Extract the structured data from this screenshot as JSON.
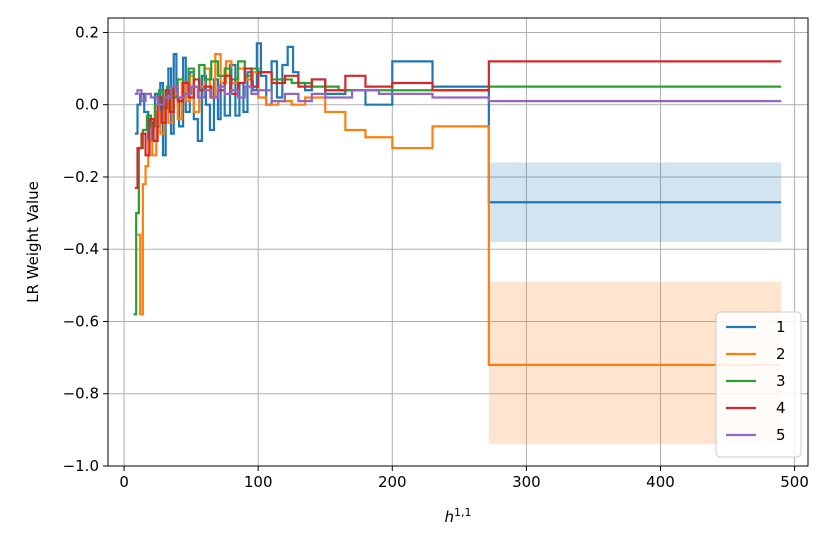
{
  "chart_data": {
    "type": "line",
    "step": true,
    "xlabel": "h",
    "xlabel_superscript": "1,1",
    "ylabel": "LR Weight Value",
    "xlim": [
      -12,
      510
    ],
    "ylim": [
      -1.0,
      0.24
    ],
    "xticks": [
      0,
      100,
      200,
      300,
      400,
      500
    ],
    "yticks": [
      0.2,
      0.0,
      -0.2,
      -0.4,
      -0.6,
      -0.8,
      -1.0
    ],
    "ytick_labels": [
      "0.2",
      "0.0",
      "−0.2",
      "−0.4",
      "−0.6",
      "−0.8",
      "−1.0"
    ],
    "grid": true,
    "legend_position": "lower-right",
    "series": [
      {
        "name": "1",
        "color": "#1f77b4",
        "points": [
          [
            8,
            -0.08
          ],
          [
            10,
            0.0
          ],
          [
            12,
            0.03
          ],
          [
            15,
            -0.02
          ],
          [
            18,
            -0.1
          ],
          [
            21,
            -0.05
          ],
          [
            23,
            0.03
          ],
          [
            25,
            -0.06
          ],
          [
            27,
            0.06
          ],
          [
            29,
            -0.14
          ],
          [
            31,
            0.03
          ],
          [
            33,
            0.1
          ],
          [
            35,
            -0.08
          ],
          [
            37,
            0.14
          ],
          [
            39,
            0.02
          ],
          [
            41,
            -0.06
          ],
          [
            44,
            0.13
          ],
          [
            46,
            -0.02
          ],
          [
            49,
            0.09
          ],
          [
            52,
            -0.04
          ],
          [
            55,
            -0.1
          ],
          [
            58,
            0.08
          ],
          [
            61,
            0.0
          ],
          [
            64,
            -0.07
          ],
          [
            67,
            0.07
          ],
          [
            70,
            -0.04
          ],
          [
            72,
            0.06
          ],
          [
            75,
            -0.03
          ],
          [
            79,
            0.11
          ],
          [
            83,
            -0.03
          ],
          [
            86,
            0.06
          ],
          [
            89,
            -0.02
          ],
          [
            92,
            0.09
          ],
          [
            96,
            0.04
          ],
          [
            99,
            0.17
          ],
          [
            102,
            0.08
          ],
          [
            106,
            0.0
          ],
          [
            110,
            0.12
          ],
          [
            114,
            0.02
          ],
          [
            118,
            0.11
          ],
          [
            122,
            0.16
          ],
          [
            126,
            0.09
          ],
          [
            130,
            0.06
          ],
          [
            135,
            0.04
          ],
          [
            140,
            0.07
          ],
          [
            150,
            0.03
          ],
          [
            165,
            0.04
          ],
          [
            180,
            0.0
          ],
          [
            200,
            0.12
          ],
          [
            230,
            0.05
          ],
          [
            272,
            -0.27
          ],
          [
            490,
            -0.27
          ]
        ],
        "band": {
          "x_from": 272,
          "x_to": 490,
          "low": -0.38,
          "high": -0.16
        }
      },
      {
        "name": "2",
        "color": "#ff7f0e",
        "points": [
          [
            10,
            -0.36
          ],
          [
            12,
            -0.58
          ],
          [
            14,
            -0.22
          ],
          [
            16,
            -0.17
          ],
          [
            18,
            -0.1
          ],
          [
            21,
            -0.14
          ],
          [
            24,
            -0.02
          ],
          [
            27,
            -0.08
          ],
          [
            30,
            0.01
          ],
          [
            33,
            -0.05
          ],
          [
            36,
            0.03
          ],
          [
            40,
            -0.04
          ],
          [
            43,
            0.06
          ],
          [
            46,
            0.01
          ],
          [
            49,
            0.08
          ],
          [
            52,
            -0.02
          ],
          [
            56,
            0.05
          ],
          [
            60,
            0.1
          ],
          [
            64,
            0.02
          ],
          [
            68,
            0.14
          ],
          [
            72,
            0.06
          ],
          [
            76,
            0.12
          ],
          [
            80,
            0.06
          ],
          [
            85,
            0.1
          ],
          [
            90,
            0.07
          ],
          [
            96,
            0.09
          ],
          [
            100,
            0.02
          ],
          [
            106,
            0.0
          ],
          [
            115,
            0.01
          ],
          [
            125,
            0.0
          ],
          [
            135,
            0.02
          ],
          [
            150,
            -0.02
          ],
          [
            165,
            -0.07
          ],
          [
            180,
            -0.09
          ],
          [
            200,
            -0.12
          ],
          [
            230,
            -0.06
          ],
          [
            272,
            -0.72
          ],
          [
            490,
            -0.72
          ]
        ],
        "band": {
          "x_from": 272,
          "x_to": 490,
          "low": -0.94,
          "high": -0.49
        }
      },
      {
        "name": "3",
        "color": "#2ca02c",
        "points": [
          [
            7,
            -0.58
          ],
          [
            9,
            -0.3
          ],
          [
            11,
            -0.12
          ],
          [
            14,
            -0.07
          ],
          [
            17,
            -0.03
          ],
          [
            20,
            -0.06
          ],
          [
            23,
            0.0
          ],
          [
            26,
            0.04
          ],
          [
            29,
            -0.01
          ],
          [
            32,
            0.05
          ],
          [
            36,
            0.02
          ],
          [
            40,
            0.07
          ],
          [
            44,
            0.03
          ],
          [
            48,
            0.1
          ],
          [
            52,
            0.05
          ],
          [
            56,
            0.11
          ],
          [
            60,
            0.07
          ],
          [
            65,
            0.12
          ],
          [
            70,
            0.08
          ],
          [
            75,
            0.1
          ],
          [
            80,
            0.07
          ],
          [
            85,
            0.12
          ],
          [
            90,
            0.08
          ],
          [
            95,
            0.1
          ],
          [
            100,
            0.09
          ],
          [
            110,
            0.07
          ],
          [
            125,
            0.06
          ],
          [
            140,
            0.05
          ],
          [
            160,
            0.04
          ],
          [
            190,
            0.04
          ],
          [
            230,
            0.04
          ],
          [
            272,
            0.05
          ],
          [
            490,
            0.05
          ]
        ]
      },
      {
        "name": "4",
        "color": "#d62728",
        "points": [
          [
            8,
            -0.23
          ],
          [
            10,
            -0.12
          ],
          [
            13,
            -0.08
          ],
          [
            16,
            -0.14
          ],
          [
            19,
            -0.04
          ],
          [
            22,
            -0.1
          ],
          [
            25,
            0.02
          ],
          [
            28,
            -0.05
          ],
          [
            31,
            0.04
          ],
          [
            34,
            -0.02
          ],
          [
            37,
            0.05
          ],
          [
            40,
            0.01
          ],
          [
            44,
            0.06
          ],
          [
            48,
            0.02
          ],
          [
            52,
            0.07
          ],
          [
            56,
            0.04
          ],
          [
            60,
            0.05
          ],
          [
            65,
            0.02
          ],
          [
            70,
            0.04
          ],
          [
            75,
            0.08
          ],
          [
            80,
            0.03
          ],
          [
            85,
            0.06
          ],
          [
            90,
            0.1
          ],
          [
            95,
            0.05
          ],
          [
            100,
            0.09
          ],
          [
            110,
            0.06
          ],
          [
            120,
            0.08
          ],
          [
            130,
            0.05
          ],
          [
            140,
            0.07
          ],
          [
            150,
            0.04
          ],
          [
            165,
            0.08
          ],
          [
            180,
            0.05
          ],
          [
            200,
            0.06
          ],
          [
            230,
            0.04
          ],
          [
            272,
            0.12
          ],
          [
            490,
            0.12
          ]
        ]
      },
      {
        "name": "5",
        "color": "#9467bd",
        "points": [
          [
            8,
            0.03
          ],
          [
            10,
            0.04
          ],
          [
            13,
            0.01
          ],
          [
            16,
            0.03
          ],
          [
            20,
            0.02
          ],
          [
            25,
            0.0
          ],
          [
            30,
            0.02
          ],
          [
            35,
            0.05
          ],
          [
            40,
            0.02
          ],
          [
            45,
            0.03
          ],
          [
            50,
            0.05
          ],
          [
            55,
            0.02
          ],
          [
            60,
            0.04
          ],
          [
            65,
            0.02
          ],
          [
            70,
            0.05
          ],
          [
            75,
            0.03
          ],
          [
            80,
            0.04
          ],
          [
            85,
            0.02
          ],
          [
            90,
            0.05
          ],
          [
            95,
            0.03
          ],
          [
            100,
            0.04
          ],
          [
            110,
            0.01
          ],
          [
            120,
            0.03
          ],
          [
            130,
            0.01
          ],
          [
            140,
            0.03
          ],
          [
            150,
            0.02
          ],
          [
            170,
            0.04
          ],
          [
            190,
            0.03
          ],
          [
            230,
            0.02
          ],
          [
            272,
            0.01
          ],
          [
            490,
            0.01
          ]
        ]
      }
    ]
  }
}
